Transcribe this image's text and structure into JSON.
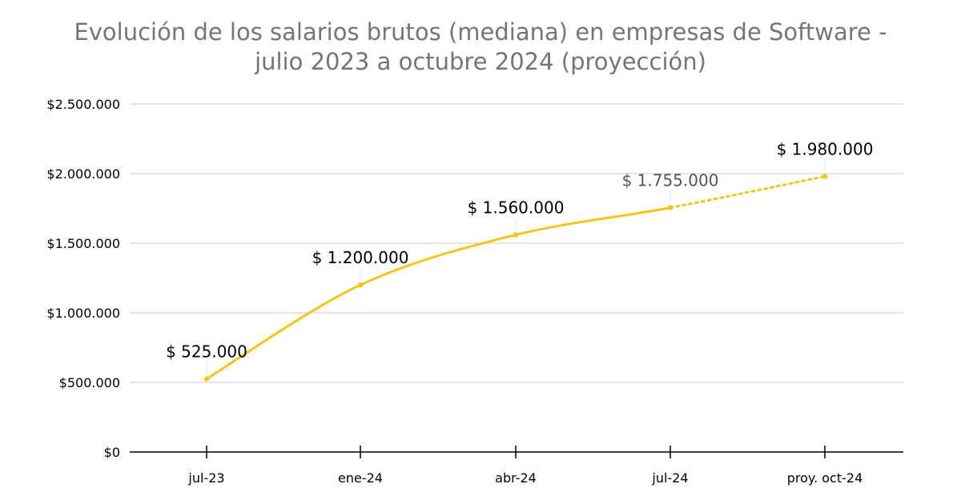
{
  "chart_data": {
    "type": "line",
    "title_lines": [
      "Evolución de los salarios brutos (mediana) en empresas de Software -",
      "julio 2023 a octubre 2024 (proyección)"
    ],
    "categories": [
      "jul-23",
      "ene-24",
      "abr-24",
      "jul-24",
      "proy. oct-24"
    ],
    "values": [
      525000,
      1200000,
      1560000,
      1755000,
      1980000
    ],
    "data_labels": [
      "$ 525.000",
      "$ 1.200.000",
      "$ 1.560.000",
      "$ 1.755.000",
      "$ 1.980.000"
    ],
    "projected_from_index": 3,
    "ylim": [
      0,
      2500000
    ],
    "yticks": [
      0,
      500000,
      1000000,
      1500000,
      2000000,
      2500000
    ],
    "ytick_labels": [
      "$0",
      "$500.000",
      "$1.000.000",
      "$1.500.000",
      "$2.000.000",
      "$2.500.000"
    ],
    "xlabel": "",
    "ylabel": "",
    "grid": true,
    "colors": {
      "line": "#F5C518",
      "grid": "#C8C8C8",
      "axis": "#000000",
      "title": "#757575"
    }
  }
}
